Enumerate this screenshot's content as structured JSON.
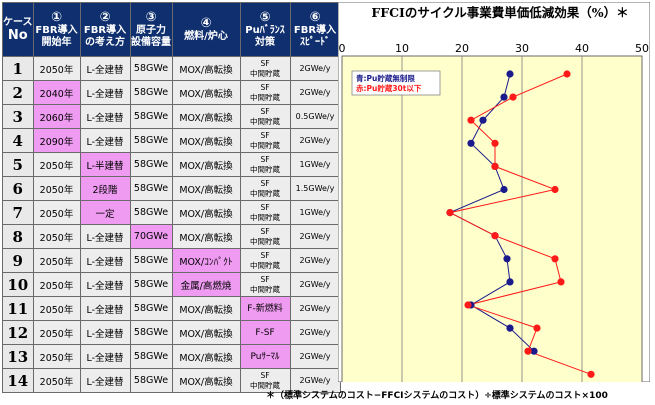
{
  "table": {
    "headers": [
      {
        "num": "ケース",
        "sub1": "No",
        "sub2": ""
      },
      {
        "num": "①",
        "sub1": "FBR導入",
        "sub2": "開始年"
      },
      {
        "num": "②",
        "sub1": "FBR導入",
        "sub2": "の考え方"
      },
      {
        "num": "③",
        "sub1": "原子力",
        "sub2": "設備容量"
      },
      {
        "num": "④",
        "sub1": "燃料/炉心",
        "sub2": ""
      },
      {
        "num": "⑤",
        "sub1": "Puﾊﾞﾗﾝｽ",
        "sub2": "対策"
      },
      {
        "num": "⑥",
        "sub1": "FBR導入",
        "sub2": "ｽﾋﾟｰﾄﾞ"
      }
    ],
    "rows": [
      {
        "no": "1",
        "year": "2050年",
        "concept": "L-全建替",
        "capacity": "58GWe",
        "fuel": "MOX/高転換",
        "pu1": "SF",
        "pu2": "中間貯蔵",
        "speed": "2GWe/y",
        "hl": []
      },
      {
        "no": "2",
        "year": "2040年",
        "concept": "L-全建替",
        "capacity": "58GWe",
        "fuel": "MOX/高転換",
        "pu1": "SF",
        "pu2": "中間貯蔵",
        "speed": "2GWe/y",
        "hl": [
          "year"
        ]
      },
      {
        "no": "3",
        "year": "2060年",
        "concept": "L-全建替",
        "capacity": "58GWe",
        "fuel": "MOX/高転換",
        "pu1": "SF",
        "pu2": "中間貯蔵",
        "speed": "0.5GWe/y",
        "hl": [
          "year"
        ]
      },
      {
        "no": "4",
        "year": "2090年",
        "concept": "L-全建替",
        "capacity": "58GWe",
        "fuel": "MOX/高転換",
        "pu1": "SF",
        "pu2": "中間貯蔵",
        "speed": "2GWe/y",
        "hl": [
          "year"
        ]
      },
      {
        "no": "5",
        "year": "2050年",
        "concept": "L-半建替",
        "capacity": "58GWe",
        "fuel": "MOX/高転換",
        "pu1": "SF",
        "pu2": "中間貯蔵",
        "speed": "1GWe/y",
        "hl": [
          "concept"
        ]
      },
      {
        "no": "6",
        "year": "2050年",
        "concept": "2段階",
        "capacity": "58GWe",
        "fuel": "MOX/高転換",
        "pu1": "SF",
        "pu2": "中間貯蔵",
        "speed": "1.5GWe/y",
        "hl": [
          "concept"
        ]
      },
      {
        "no": "7",
        "year": "2050年",
        "concept": "一定",
        "capacity": "58GWe",
        "fuel": "MOX/高転換",
        "pu1": "SF",
        "pu2": "中間貯蔵",
        "speed": "1GWe/y",
        "hl": [
          "concept"
        ]
      },
      {
        "no": "8",
        "year": "2050年",
        "concept": "L-全建替",
        "capacity": "70GWe",
        "fuel": "MOX/高転換",
        "pu1": "SF",
        "pu2": "中間貯蔵",
        "speed": "2GWe/y",
        "hl": [
          "capacity"
        ]
      },
      {
        "no": "9",
        "year": "2050年",
        "concept": "L-全建替",
        "capacity": "58GWe",
        "fuel": "MOX/ｺﾝﾊﾟｸﾄ",
        "pu1": "SF",
        "pu2": "中間貯蔵",
        "speed": "2GWe/y",
        "hl": [
          "fuel"
        ]
      },
      {
        "no": "10",
        "year": "2050年",
        "concept": "L-全建替",
        "capacity": "58GWe",
        "fuel": "金属/高燃焼",
        "pu1": "SF",
        "pu2": "中間貯蔵",
        "speed": "2GWe/y",
        "hl": [
          "fuel"
        ]
      },
      {
        "no": "11",
        "year": "2050年",
        "concept": "L-全建替",
        "capacity": "58GWe",
        "fuel": "MOX/高転換",
        "pu1": "F-新燃料",
        "pu2": "",
        "speed": "2GWe/y",
        "hl": [
          "pu"
        ]
      },
      {
        "no": "12",
        "year": "2050年",
        "concept": "L-全建替",
        "capacity": "58GWe",
        "fuel": "MOX/高転換",
        "pu1": "F-SF",
        "pu2": "",
        "speed": "2GWe/y",
        "hl": [
          "pu"
        ]
      },
      {
        "no": "13",
        "year": "2050年",
        "concept": "L-全建替",
        "capacity": "58GWe",
        "fuel": "MOX/高転換",
        "pu1": "Puｻｰﾏﾙ",
        "pu2": "",
        "speed": "2GWe/y",
        "hl": [
          "pu"
        ]
      },
      {
        "no": "14",
        "year": "2050年",
        "concept": "L-全建替",
        "capacity": "58GWe",
        "fuel": "MOX/高転換",
        "pu1": "SF",
        "pu2": "中間貯蔵",
        "speed": "2GWe/y",
        "hl": []
      }
    ]
  },
  "colors": {
    "header_bg": "#0f2f6e",
    "highlight": "#ef9bf1",
    "plot_bg": "#ffffcc",
    "blue_series": "#1a1a8c",
    "red_series": "#ff1a1a"
  },
  "footnote": "＊（標準システムのコスト−FFCIシステムのコスト）÷標準システムのコスト×100",
  "chart_data": {
    "type": "line",
    "title": "FFCIのサイクル事業費単価低減効果（%）＊",
    "xlim": [
      0,
      50
    ],
    "xticks": [
      0,
      10,
      20,
      30,
      40,
      50
    ],
    "orientation": "horizontal",
    "categories": [
      "1",
      "2",
      "3",
      "4",
      "5",
      "6",
      "7",
      "8",
      "9",
      "10",
      "11",
      "12",
      "13",
      "14"
    ],
    "legend_position": "top-left",
    "grid": "x",
    "series": [
      {
        "name": "青:Pu貯蔵無制限",
        "color": "#1a1a8c",
        "marker": "circle",
        "values": [
          28,
          27,
          23.5,
          21.5,
          25.5,
          27,
          18,
          25.5,
          27.5,
          28,
          21.5,
          28,
          32,
          null
        ]
      },
      {
        "name": "赤:Pu貯蔵30t以下",
        "color": "#ff1a1a",
        "marker": "circle",
        "values": [
          37.5,
          28.5,
          21.5,
          25.5,
          25.5,
          35.5,
          18,
          25.5,
          35.5,
          36.5,
          21,
          32.5,
          31,
          41.5
        ]
      }
    ]
  }
}
